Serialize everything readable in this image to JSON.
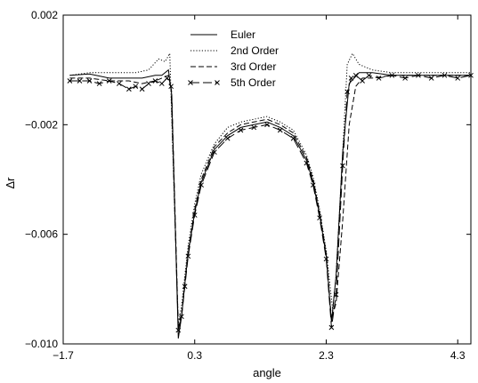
{
  "chart_data": {
    "type": "line",
    "title": "",
    "xlabel": "angle",
    "ylabel": "Δr",
    "xlim": [
      -1.7,
      4.5
    ],
    "ylim": [
      -0.01,
      0.002
    ],
    "x_ticks": [
      -1.7,
      0.3,
      2.3,
      4.3
    ],
    "x_tick_labels": [
      "−1.7",
      "0.3",
      "2.3",
      "4.3"
    ],
    "y_ticks": [
      -0.01,
      -0.006,
      -0.002,
      0.002
    ],
    "y_tick_labels": [
      "−0.010",
      "−0.006",
      "−0.002",
      "0.002"
    ],
    "grid": false,
    "legend_position": "top-center",
    "series": [
      {
        "name": "Euler",
        "style": "solid",
        "marker": "none",
        "color": "#000000",
        "x": [
          -1.6,
          -1.3,
          -1.0,
          -0.7,
          -0.5,
          -0.3,
          -0.2,
          -0.1,
          -0.05,
          0.05,
          0.1,
          0.15,
          0.2,
          0.3,
          0.4,
          0.6,
          0.8,
          1.0,
          1.2,
          1.4,
          1.6,
          1.8,
          2.0,
          2.1,
          2.2,
          2.3,
          2.38,
          2.45,
          2.55,
          2.65,
          2.8,
          3.0,
          3.3,
          3.6,
          3.9,
          4.2,
          4.5
        ],
        "y": [
          -0.0002,
          -0.00015,
          -0.0003,
          -0.0003,
          -0.0003,
          -0.0002,
          -0.0002,
          0.0,
          -0.0009,
          -0.0098,
          -0.009,
          -0.0078,
          -0.0067,
          -0.0052,
          -0.0041,
          -0.0029,
          -0.0024,
          -0.0021,
          -0.002,
          -0.0019,
          -0.0021,
          -0.0024,
          -0.0033,
          -0.0041,
          -0.0053,
          -0.0068,
          -0.0092,
          -0.0075,
          -0.003,
          -0.0005,
          -0.0001,
          -0.0001,
          -0.0002,
          -0.0002,
          -0.0002,
          -0.0002,
          -0.0002
        ]
      },
      {
        "name": "2nd Order",
        "style": "dotted",
        "marker": "none",
        "color": "#000000",
        "x": [
          -1.6,
          -1.3,
          -1.0,
          -0.8,
          -0.6,
          -0.4,
          -0.25,
          -0.15,
          -0.08,
          0.05,
          0.1,
          0.15,
          0.2,
          0.3,
          0.4,
          0.6,
          0.8,
          1.0,
          1.2,
          1.4,
          1.6,
          1.8,
          2.0,
          2.1,
          2.2,
          2.3,
          2.4,
          2.45,
          2.55,
          2.62,
          2.7,
          2.8,
          3.0,
          3.3,
          3.6,
          3.9,
          4.2,
          4.5
        ],
        "y": [
          -0.0002,
          -0.0001,
          -0.0001,
          -0.0001,
          -0.0001,
          0.0,
          0.0004,
          0.0003,
          0.0006,
          -0.0093,
          -0.0086,
          -0.0075,
          -0.0064,
          -0.0049,
          -0.0038,
          -0.0027,
          -0.0021,
          -0.0019,
          -0.0018,
          -0.0017,
          -0.0019,
          -0.0022,
          -0.0031,
          -0.0039,
          -0.0051,
          -0.0066,
          -0.0088,
          -0.0075,
          -0.003,
          0.0002,
          0.0006,
          0.0002,
          0.0,
          -0.0001,
          -0.0001,
          -0.0001,
          -0.0001,
          -0.0001
        ]
      },
      {
        "name": "3rd Order",
        "style": "dashed",
        "marker": "none",
        "color": "#000000",
        "x": [
          -1.6,
          -1.3,
          -1.0,
          -0.7,
          -0.5,
          -0.3,
          -0.2,
          -0.1,
          -0.05,
          0.05,
          0.1,
          0.15,
          0.2,
          0.3,
          0.4,
          0.6,
          0.8,
          1.0,
          1.2,
          1.4,
          1.6,
          1.8,
          2.0,
          2.1,
          2.2,
          2.3,
          2.38,
          2.45,
          2.55,
          2.65,
          2.75,
          2.85,
          3.0,
          3.3,
          3.6,
          3.9,
          4.2,
          4.5
        ],
        "y": [
          -0.0003,
          -0.0003,
          -0.0004,
          -0.0004,
          -0.0005,
          -0.0004,
          -0.0003,
          -0.0002,
          -0.0008,
          -0.0094,
          -0.0089,
          -0.0077,
          -0.0066,
          -0.0051,
          -0.004,
          -0.0028,
          -0.0023,
          -0.002,
          -0.0019,
          -0.0018,
          -0.002,
          -0.0023,
          -0.0032,
          -0.004,
          -0.0052,
          -0.0067,
          -0.0091,
          -0.0085,
          -0.0055,
          -0.002,
          -0.0006,
          -0.0003,
          -0.0003,
          -0.0002,
          -0.0002,
          -0.0002,
          -0.0002,
          -0.0002
        ]
      },
      {
        "name": "5th Order",
        "style": "long-dash",
        "marker": "x",
        "color": "#000000",
        "x": [
          -1.6,
          -1.45,
          -1.3,
          -1.15,
          -1.0,
          -0.85,
          -0.7,
          -0.6,
          -0.5,
          -0.4,
          -0.3,
          -0.2,
          -0.12,
          -0.06,
          0.05,
          0.1,
          0.15,
          0.2,
          0.3,
          0.4,
          0.6,
          0.8,
          1.0,
          1.2,
          1.4,
          1.6,
          1.8,
          2.0,
          2.1,
          2.2,
          2.3,
          2.38,
          2.45,
          2.55,
          2.62,
          2.68,
          2.75,
          2.85,
          2.95,
          3.1,
          3.3,
          3.5,
          3.7,
          3.9,
          4.1,
          4.3,
          4.5
        ],
        "y": [
          -0.0004,
          -0.0004,
          -0.0004,
          -0.0005,
          -0.0004,
          -0.0005,
          -0.0007,
          -0.0006,
          -0.0007,
          -0.0005,
          -0.0004,
          -0.0005,
          -0.0003,
          -0.0006,
          -0.0095,
          -0.009,
          -0.0079,
          -0.0068,
          -0.0053,
          -0.0042,
          -0.003,
          -0.0025,
          -0.0022,
          -0.0021,
          -0.002,
          -0.0022,
          -0.0025,
          -0.0034,
          -0.0042,
          -0.0054,
          -0.0069,
          -0.0094,
          -0.0082,
          -0.0035,
          -0.0008,
          -0.0003,
          -0.0002,
          -0.0004,
          -0.0002,
          -0.0003,
          -0.0002,
          -0.0003,
          -0.0002,
          -0.0003,
          -0.0002,
          -0.0003,
          -0.0002
        ]
      }
    ]
  }
}
